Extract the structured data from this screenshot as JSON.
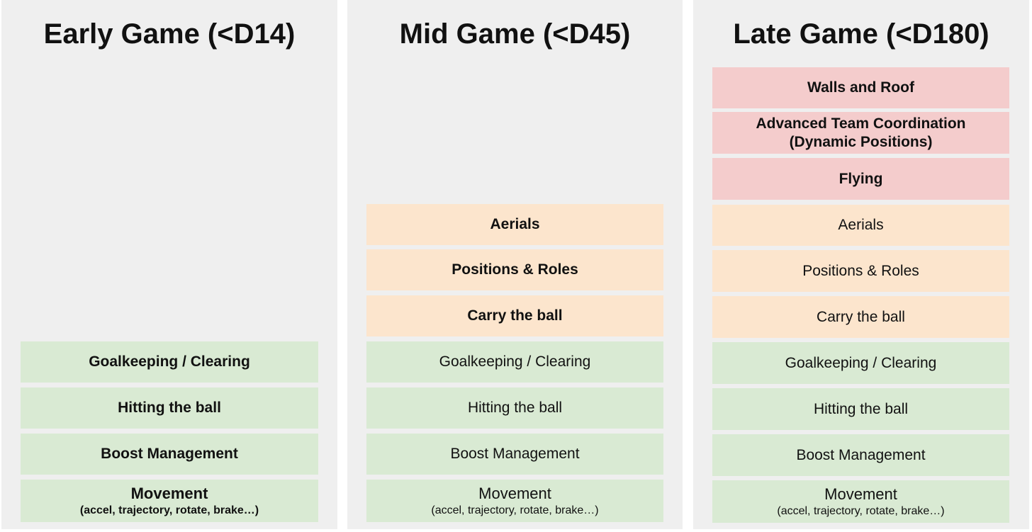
{
  "columns": [
    {
      "title": "Early Game (<D14)",
      "blocks": [
        {
          "label": "Goalkeeping / Clearing",
          "tier": "basic",
          "bold": true
        },
        {
          "label": "Hitting the ball",
          "tier": "basic",
          "bold": true
        },
        {
          "label": "Boost Management",
          "tier": "basic",
          "bold": true
        },
        {
          "label": "Movement",
          "sub": "(accel, trajectory, rotate, brake…)",
          "tier": "basic",
          "bold": true
        }
      ]
    },
    {
      "title": "Mid Game (<D45)",
      "blocks": [
        {
          "label": "Aerials",
          "tier": "intermediate",
          "bold": true
        },
        {
          "label": "Positions & Roles",
          "tier": "intermediate",
          "bold": true
        },
        {
          "label": "Carry the ball",
          "tier": "intermediate",
          "bold": true
        },
        {
          "label": "Goalkeeping / Clearing",
          "tier": "basic",
          "bold": false
        },
        {
          "label": "Hitting the ball",
          "tier": "basic",
          "bold": false
        },
        {
          "label": "Boost Management",
          "tier": "basic",
          "bold": false
        },
        {
          "label": "Movement",
          "sub": "(accel, trajectory, rotate, brake…)",
          "tier": "basic",
          "bold": false
        }
      ]
    },
    {
      "title": "Late Game (<D180)",
      "blocks": [
        {
          "label": "Walls and Roof",
          "tier": "advanced",
          "bold": true
        },
        {
          "label": "Advanced Team Coordination",
          "sub": "(Dynamic Positions)",
          "tier": "advanced",
          "bold": true
        },
        {
          "label": "Flying",
          "tier": "advanced",
          "bold": true
        },
        {
          "label": "Aerials",
          "tier": "intermediate",
          "bold": false
        },
        {
          "label": "Positions & Roles",
          "tier": "intermediate",
          "bold": false
        },
        {
          "label": "Carry the ball",
          "tier": "intermediate",
          "bold": false
        },
        {
          "label": "Goalkeeping / Clearing",
          "tier": "basic",
          "bold": false
        },
        {
          "label": "Hitting the ball",
          "tier": "basic",
          "bold": false
        },
        {
          "label": "Boost Management",
          "tier": "basic",
          "bold": false
        },
        {
          "label": "Movement",
          "sub": "(accel, trajectory, rotate, brake…)",
          "tier": "basic",
          "bold": false
        }
      ]
    }
  ],
  "colors": {
    "basic": "#d9ead3",
    "intermediate": "#fce5cd",
    "advanced": "#f4cccc",
    "panel": "#efefef"
  }
}
